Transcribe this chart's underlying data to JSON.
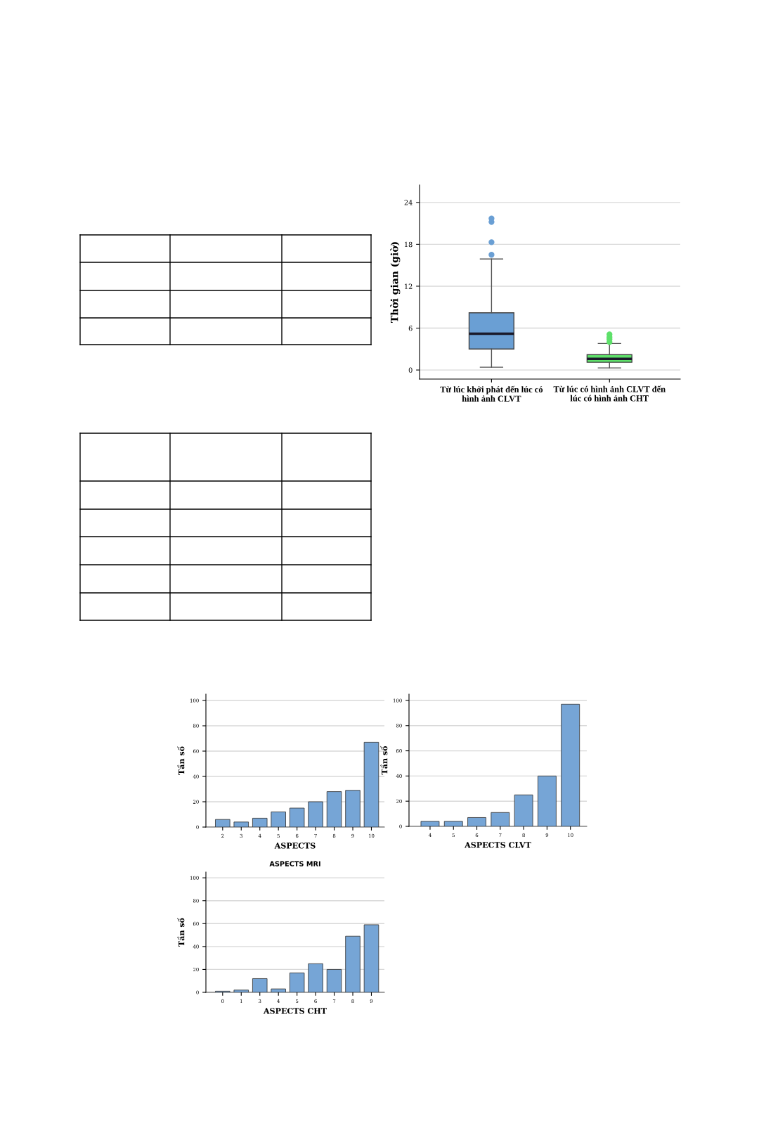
{
  "chart_data": [
    {
      "type": "box",
      "categories": [
        "Từ lúc khởi phát đến lúc có\nhình ảnh CLVT",
        "Từ lúc có hình ảnh CLVT đến\nlúc có hình ảnh CHT"
      ],
      "ylabel": "Thời gian (giờ)",
      "ylim": [
        -1.3,
        26.5
      ],
      "yticks": [
        0,
        6,
        12,
        18,
        24
      ],
      "grid": "y",
      "colors": [
        "#6a9fd4",
        "#5ee06a"
      ],
      "boxes": [
        {
          "low": 0.4,
          "q1": 3.0,
          "median": 5.2,
          "q3": 8.2,
          "high": 15.9,
          "outliers": [
            16.5,
            18.3,
            21.2,
            21.7
          ]
        },
        {
          "low": 0.3,
          "q1": 1.1,
          "median": 1.6,
          "q3": 2.2,
          "high": 3.8,
          "outliers": [
            4.0,
            4.4,
            4.7,
            5.1
          ]
        }
      ]
    },
    {
      "type": "bar",
      "categories": [
        "2",
        "3",
        "4",
        "5",
        "6",
        "7",
        "8",
        "9",
        "10"
      ],
      "values": [
        6,
        4,
        7,
        12,
        15,
        20,
        28,
        29,
        67
      ],
      "color": "#76a5d6",
      "xlabel": "ASPECTS",
      "ylabel": "Tần số",
      "ylim": [
        0,
        105
      ],
      "yticks": [
        0,
        20,
        40,
        60,
        80,
        100
      ],
      "grid": "y"
    },
    {
      "type": "bar",
      "categories": [
        "4",
        "5",
        "6",
        "7",
        "8",
        "9",
        "10"
      ],
      "values": [
        4,
        4,
        7,
        11,
        25,
        40,
        97
      ],
      "color": "#76a5d6",
      "xlabel": "ASPECTS CLVT",
      "ylabel": "Tần số",
      "ylim": [
        0,
        105
      ],
      "yticks": [
        0,
        20,
        40,
        60,
        80,
        100
      ],
      "grid": "y"
    },
    {
      "type": "bar",
      "title": "ASPECTS MRI",
      "categories": [
        "0",
        "1",
        "3",
        "4",
        "5",
        "6",
        "7",
        "8",
        "9"
      ],
      "values": [
        1,
        2,
        12,
        3,
        17,
        25,
        20,
        49,
        59
      ],
      "color": "#76a5d6",
      "xlabel": "ASPECTS CHT",
      "ylabel": "Tần số",
      "ylim": [
        0,
        105
      ],
      "yticks": [
        0,
        20,
        40,
        60,
        80,
        100
      ],
      "grid": "y"
    }
  ]
}
